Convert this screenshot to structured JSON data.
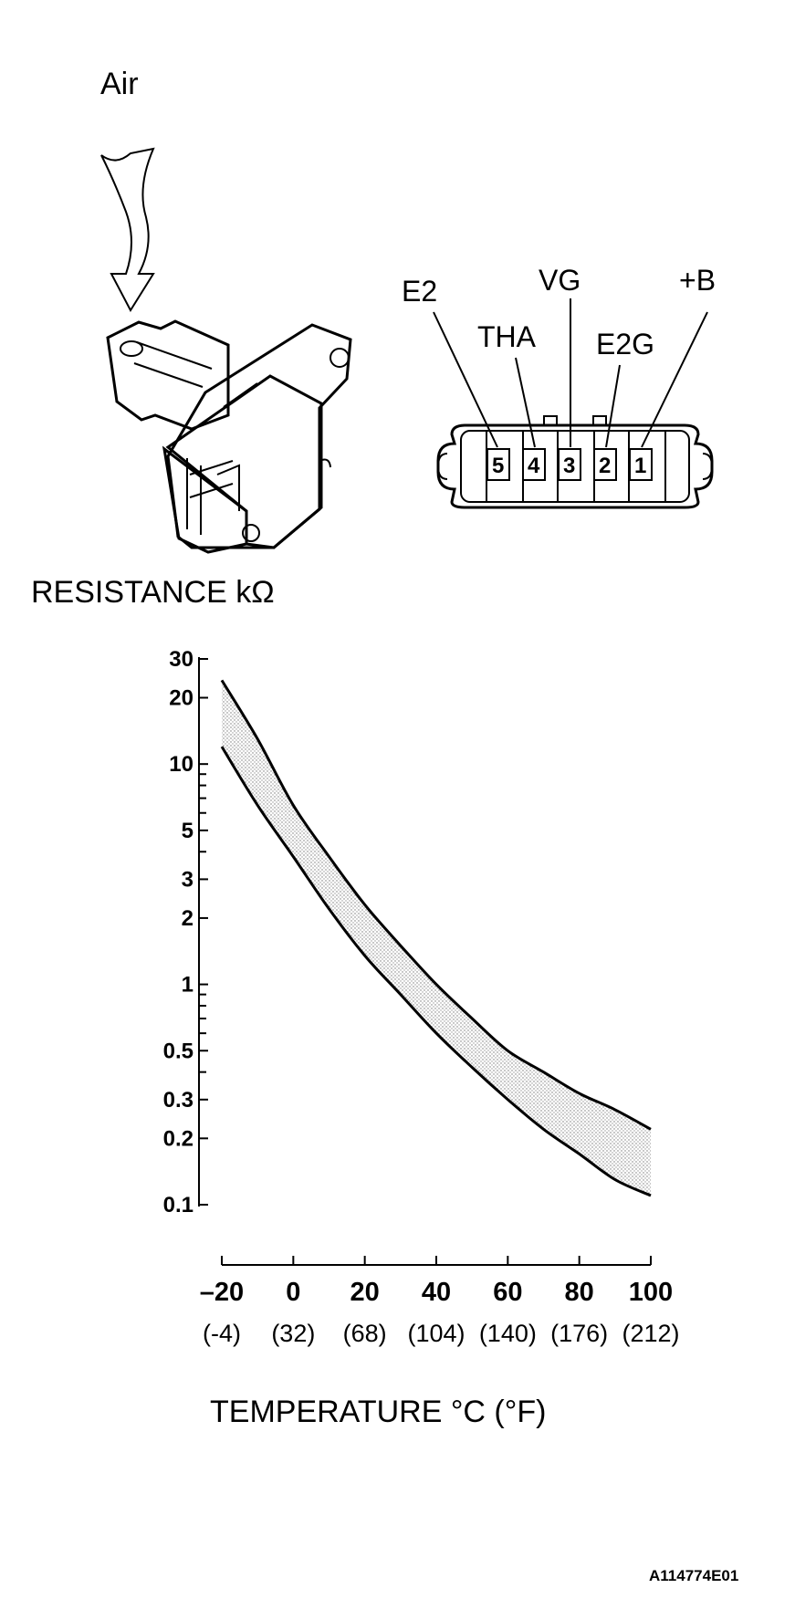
{
  "air_label": "Air",
  "resistance_label": "RESISTANCE kΩ",
  "temperature_label": "TEMPERATURE °C (°F)",
  "figure_code": "A114774E01",
  "connector": {
    "pins": [
      {
        "number": "5",
        "terminal": "E2"
      },
      {
        "number": "4",
        "terminal": "THA"
      },
      {
        "number": "3",
        "terminal": "VG"
      },
      {
        "number": "2",
        "terminal": "E2G"
      },
      {
        "number": "1",
        "terminal": "+B"
      }
    ]
  },
  "chart_data": {
    "type": "area",
    "x_ticks": [
      "–20",
      "0",
      "20",
      "40",
      "60",
      "80",
      "100"
    ],
    "x_ticks_f": [
      "(-4)",
      "(32)",
      "(68)",
      "(104)",
      "(140)",
      "(176)",
      "(212)"
    ],
    "y_ticks": [
      "30",
      "20",
      "10",
      "5",
      "3",
      "2",
      "1",
      "0.5",
      "0.3",
      "0.2",
      "0.1"
    ],
    "y_scale": "log",
    "xlim": [
      -20,
      100
    ],
    "ylim": [
      0.1,
      30
    ],
    "grid": false,
    "series": [
      {
        "x": [
          -20,
          -10,
          0,
          10,
          20,
          30,
          40,
          50,
          60,
          70,
          80,
          90,
          100
        ],
        "values": [
          24,
          13,
          6.5,
          3.8,
          2.3,
          1.5,
          1.0,
          0.7,
          0.5,
          0.4,
          0.32,
          0.27,
          0.22
        ]
      },
      {
        "x": [
          -20,
          -10,
          0,
          10,
          20,
          30,
          40,
          50,
          60,
          70,
          80,
          90,
          100
        ],
        "values": [
          12,
          6.5,
          3.8,
          2.2,
          1.35,
          0.9,
          0.6,
          0.42,
          0.3,
          0.22,
          0.17,
          0.13,
          0.11
        ]
      }
    ]
  }
}
